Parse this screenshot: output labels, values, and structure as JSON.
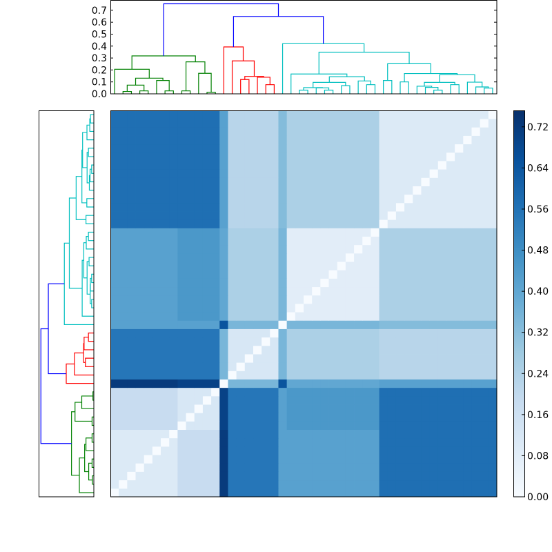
{
  "chart_data": [
    {
      "type": "heatmap",
      "colormap": "Blues",
      "vmin": 0.0,
      "vmax": 0.752,
      "leaf_count": 46,
      "diagonal_value": 0.0,
      "leaf_groups": [
        [
          0,
          7
        ],
        [
          8,
          12
        ],
        [
          13,
          13
        ],
        [
          14,
          19
        ],
        [
          20,
          20
        ],
        [
          21,
          31
        ],
        [
          32,
          45
        ]
      ],
      "group_block_values": [
        [
          0.1,
          0.18,
          0.72,
          0.55,
          0.42,
          0.42,
          0.57
        ],
        [
          0.18,
          0.12,
          0.7,
          0.55,
          0.42,
          0.45,
          0.57
        ],
        [
          0.72,
          0.7,
          0.0,
          0.35,
          0.65,
          0.4,
          0.42
        ],
        [
          0.55,
          0.55,
          0.35,
          0.12,
          0.35,
          0.25,
          0.22
        ],
        [
          0.42,
          0.42,
          0.65,
          0.35,
          0.0,
          0.35,
          0.33
        ],
        [
          0.42,
          0.45,
          0.4,
          0.25,
          0.35,
          0.08,
          0.25
        ],
        [
          0.57,
          0.57,
          0.42,
          0.22,
          0.33,
          0.25,
          0.1
        ]
      ],
      "colorbar": {
        "range": [
          0.0,
          0.752
        ],
        "ticks": [
          0.0,
          0.08,
          0.16,
          0.24,
          0.32,
          0.4,
          0.48,
          0.56,
          0.64,
          0.72
        ],
        "tick_labels": [
          "0.00",
          "0.08",
          "0.16",
          "0.24",
          "0.32",
          "0.40",
          "0.48",
          "0.56",
          "0.64",
          "0.72"
        ]
      }
    },
    {
      "type": "dendrogram",
      "orientation": "top",
      "ylim": [
        0.0,
        0.786
      ],
      "yticks": [
        0.0,
        0.1,
        0.2,
        0.3,
        0.4,
        0.5,
        0.6,
        0.7
      ],
      "ytick_labels": [
        "0.0",
        "0.1",
        "0.2",
        "0.3",
        "0.4",
        "0.5",
        "0.6",
        "0.7"
      ],
      "colors": {
        "green": "#008000",
        "red": "#ff0000",
        "cyan": "#00bfbf",
        "blue": "#0000ff"
      },
      "links": [
        [
          1,
          0,
          2,
          0,
          0.02,
          "green"
        ],
        [
          3,
          0,
          4,
          0,
          0.025,
          "green"
        ],
        [
          1.5,
          0.02,
          3.5,
          0.025,
          0.073,
          "green"
        ],
        [
          6,
          0,
          7,
          0,
          0.025,
          "green"
        ],
        [
          5,
          0,
          6.5,
          0.025,
          0.112,
          "green"
        ],
        [
          2.5,
          0.073,
          5.75,
          0.112,
          0.131,
          "green"
        ],
        [
          0,
          0,
          4.125,
          0.131,
          0.206,
          "green"
        ],
        [
          8,
          0,
          9,
          0,
          0.025,
          "green"
        ],
        [
          11,
          0,
          12,
          0,
          0.013,
          "green"
        ],
        [
          10,
          0,
          11.5,
          0.013,
          0.172,
          "green"
        ],
        [
          8.5,
          0.025,
          10.75,
          0.172,
          0.268,
          "green"
        ],
        [
          2.0625,
          0.206,
          9.625,
          0.268,
          0.318,
          "green"
        ],
        [
          15,
          0,
          16,
          0,
          0.12,
          "red"
        ],
        [
          18,
          0,
          19,
          0,
          0.077,
          "red"
        ],
        [
          17,
          0,
          18.5,
          0.077,
          0.139,
          "red"
        ],
        [
          15.5,
          0.12,
          17.75,
          0.139,
          0.146,
          "red"
        ],
        [
          14,
          0,
          16.625,
          0.146,
          0.276,
          "red"
        ],
        [
          13,
          0,
          15.3125,
          0.276,
          0.393,
          "red"
        ],
        [
          22,
          0,
          23,
          0,
          0.031,
          "cyan"
        ],
        [
          25,
          0,
          26,
          0,
          0.031,
          "cyan"
        ],
        [
          24,
          0,
          25.5,
          0.031,
          0.05,
          "cyan"
        ],
        [
          22.5,
          0.031,
          24.75,
          0.05,
          0.052,
          "cyan"
        ],
        [
          27,
          0,
          28,
          0,
          0.068,
          "cyan"
        ],
        [
          23.625,
          0.052,
          27.5,
          0.068,
          0.096,
          "cyan"
        ],
        [
          30,
          0,
          31,
          0,
          0.077,
          "cyan"
        ],
        [
          29,
          0,
          30.5,
          0.077,
          0.108,
          "cyan"
        ],
        [
          25.5625,
          0.096,
          29.75,
          0.108,
          0.143,
          "cyan"
        ],
        [
          21,
          0,
          27.65625,
          0.143,
          0.166,
          "cyan"
        ],
        [
          32,
          0,
          33,
          0,
          0.112,
          "cyan"
        ],
        [
          34,
          0,
          35,
          0,
          0.1,
          "cyan"
        ],
        [
          38,
          0,
          39,
          0,
          0.031,
          "cyan"
        ],
        [
          37,
          0,
          38.5,
          0.031,
          0.054,
          "cyan"
        ],
        [
          36,
          0,
          37.75,
          0.054,
          0.064,
          "cyan"
        ],
        [
          40,
          0,
          41,
          0,
          0.077,
          "cyan"
        ],
        [
          36.875,
          0.064,
          40.5,
          0.077,
          0.096,
          "cyan"
        ],
        [
          44,
          0,
          45,
          0,
          0.048,
          "cyan"
        ],
        [
          43,
          0,
          44.5,
          0.048,
          0.058,
          "cyan"
        ],
        [
          42,
          0,
          43.75,
          0.058,
          0.098,
          "cyan"
        ],
        [
          38.6875,
          0.096,
          42.875,
          0.098,
          0.16,
          "cyan"
        ],
        [
          34.5,
          0.1,
          40.78125,
          0.16,
          0.17,
          "cyan"
        ],
        [
          32.5,
          0.112,
          37.640625,
          0.17,
          0.252,
          "cyan"
        ],
        [
          24.328125,
          0.166,
          35.0703125,
          0.252,
          0.349,
          "cyan"
        ],
        [
          20,
          0,
          29.69921875,
          0.349,
          0.42,
          "cyan"
        ],
        [
          14.15625,
          0.393,
          24.849609375,
          0.42,
          0.648,
          "blue"
        ],
        [
          5.84375,
          0.318,
          19.5029296875,
          0.648,
          0.754,
          "blue"
        ]
      ]
    },
    {
      "type": "dendrogram",
      "orientation": "left",
      "xlim": [
        0.786,
        0.0
      ],
      "links_same_as_top": true
    }
  ]
}
